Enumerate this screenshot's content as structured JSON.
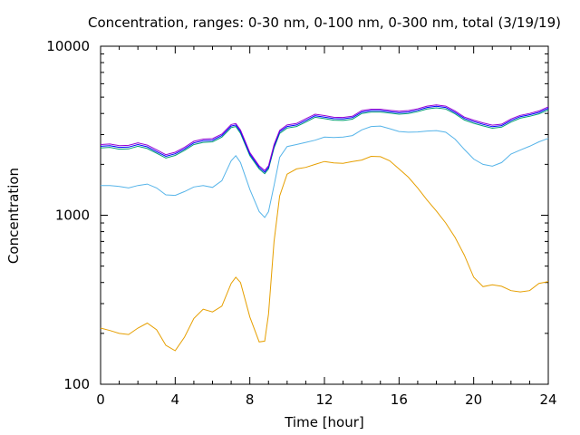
{
  "chart_data": {
    "type": "line",
    "title": "Concentration, ranges: 0-30 nm, 0-100 nm, 0-300 nm, total (3/19/19)",
    "xlabel": "Time [hour]",
    "ylabel": "Concentration",
    "xlim": [
      0,
      24
    ],
    "ylim": [
      100,
      10000
    ],
    "yscale": "log",
    "grid": false,
    "x_ticks": [
      0,
      4,
      8,
      12,
      16,
      20,
      24
    ],
    "x_tick_labels": [
      "0",
      "4",
      "8",
      "12",
      "16",
      "20",
      "24"
    ],
    "y_ticks": [
      100,
      1000,
      10000
    ],
    "y_tick_labels": [
      "100",
      "1000",
      "10000"
    ],
    "series": [
      {
        "color": "#e69f00",
        "x": [
          0,
          0.5,
          1,
          1.5,
          2,
          2.5,
          3,
          3.5,
          4,
          4.5,
          5,
          5.5,
          6,
          6.5,
          7,
          7.25,
          7.5,
          8,
          8.5,
          8.8,
          9,
          9.3,
          9.6,
          10,
          10.5,
          11,
          11.5,
          12,
          12.5,
          13,
          13.5,
          14,
          14.5,
          15,
          15.5,
          16,
          16.5,
          17,
          17.5,
          18,
          18.5,
          19,
          19.5,
          20,
          20.5,
          21,
          21.5,
          22,
          22.5,
          23,
          23.5,
          24
        ],
        "y": [
          215,
          208,
          200,
          197,
          215,
          230,
          210,
          170,
          158,
          190,
          245,
          278,
          268,
          290,
          395,
          430,
          400,
          250,
          178,
          180,
          260,
          700,
          1300,
          1750,
          1880,
          1920,
          2000,
          2080,
          2040,
          2030,
          2080,
          2120,
          2230,
          2220,
          2100,
          1880,
          1680,
          1450,
          1230,
          1060,
          900,
          740,
          580,
          430,
          378,
          388,
          380,
          358,
          352,
          358,
          395,
          405
        ]
      },
      {
        "color": "#56b4e9",
        "x": [
          0,
          0.5,
          1,
          1.5,
          2,
          2.5,
          3,
          3.5,
          4,
          4.5,
          5,
          5.5,
          6,
          6.5,
          7,
          7.25,
          7.5,
          8,
          8.5,
          8.8,
          9,
          9.3,
          9.6,
          10,
          10.5,
          11,
          11.5,
          12,
          12.5,
          13,
          13.5,
          14,
          14.5,
          15,
          15.5,
          16,
          16.5,
          17,
          17.5,
          18,
          18.5,
          19,
          19.5,
          20,
          20.5,
          21,
          21.5,
          22,
          22.5,
          23,
          23.5,
          24
        ],
        "y": [
          1500,
          1500,
          1480,
          1450,
          1500,
          1530,
          1450,
          1320,
          1310,
          1380,
          1470,
          1500,
          1460,
          1600,
          2100,
          2250,
          2050,
          1420,
          1050,
          970,
          1050,
          1500,
          2200,
          2550,
          2620,
          2700,
          2780,
          2900,
          2880,
          2900,
          2960,
          3200,
          3350,
          3370,
          3250,
          3130,
          3100,
          3110,
          3150,
          3170,
          3100,
          2820,
          2450,
          2150,
          2000,
          1950,
          2050,
          2300,
          2430,
          2560,
          2720,
          2850
        ]
      },
      {
        "color": "#009e73",
        "x": [
          0,
          0.5,
          1,
          1.5,
          2,
          2.5,
          3,
          3.5,
          4,
          4.5,
          5,
          5.5,
          6,
          6.5,
          7,
          7.25,
          7.5,
          8,
          8.5,
          8.8,
          9,
          9.3,
          9.6,
          10,
          10.5,
          11,
          11.5,
          12,
          12.5,
          13,
          13.5,
          14,
          14.5,
          15,
          15.5,
          16,
          16.5,
          17,
          17.5,
          18,
          18.5,
          19,
          19.5,
          20,
          20.5,
          21,
          21.5,
          22,
          22.5,
          23,
          23.5,
          24
        ],
        "y": [
          2500,
          2520,
          2460,
          2470,
          2560,
          2480,
          2330,
          2180,
          2260,
          2420,
          2620,
          2700,
          2720,
          2900,
          3300,
          3350,
          3050,
          2250,
          1880,
          1760,
          1880,
          2500,
          3050,
          3280,
          3350,
          3560,
          3800,
          3730,
          3650,
          3640,
          3700,
          4000,
          4080,
          4080,
          4020,
          3960,
          4000,
          4100,
          4250,
          4320,
          4250,
          3980,
          3660,
          3500,
          3380,
          3270,
          3320,
          3560,
          3750,
          3850,
          3980,
          4200
        ]
      },
      {
        "color": "#0000ff",
        "x": [
          0,
          0.5,
          1,
          1.5,
          2,
          2.5,
          3,
          3.5,
          4,
          4.5,
          5,
          5.5,
          6,
          6.5,
          7,
          7.25,
          7.5,
          8,
          8.5,
          8.8,
          9,
          9.3,
          9.6,
          10,
          10.5,
          11,
          11.5,
          12,
          12.5,
          13,
          13.5,
          14,
          14.5,
          15,
          15.5,
          16,
          16.5,
          17,
          17.5,
          18,
          18.5,
          19,
          19.5,
          20,
          20.5,
          21,
          21.5,
          22,
          22.5,
          23,
          23.5,
          24
        ],
        "y": [
          2560,
          2580,
          2520,
          2530,
          2620,
          2540,
          2380,
          2230,
          2310,
          2470,
          2680,
          2760,
          2780,
          2960,
          3370,
          3420,
          3120,
          2300,
          1920,
          1800,
          1920,
          2560,
          3120,
          3350,
          3420,
          3640,
          3880,
          3810,
          3730,
          3720,
          3780,
          4080,
          4160,
          4160,
          4100,
          4040,
          4080,
          4180,
          4340,
          4410,
          4340,
          4060,
          3740,
          3580,
          3450,
          3340,
          3390,
          3640,
          3830,
          3930,
          4060,
          4290
        ]
      },
      {
        "color": "#9400d3",
        "x": [
          0,
          0.5,
          1,
          1.5,
          2,
          2.5,
          3,
          3.5,
          4,
          4.5,
          5,
          5.5,
          6,
          6.5,
          7,
          7.25,
          7.5,
          8,
          8.5,
          8.8,
          9,
          9.3,
          9.6,
          10,
          10.5,
          11,
          11.5,
          12,
          12.5,
          13,
          13.5,
          14,
          14.5,
          15,
          15.5,
          16,
          16.5,
          17,
          17.5,
          18,
          18.5,
          19,
          19.5,
          20,
          20.5,
          21,
          21.5,
          22,
          22.5,
          23,
          23.5,
          24
        ],
        "y": [
          2620,
          2640,
          2580,
          2590,
          2680,
          2600,
          2440,
          2280,
          2360,
          2520,
          2740,
          2820,
          2840,
          3020,
          3440,
          3490,
          3190,
          2350,
          1960,
          1840,
          1960,
          2620,
          3180,
          3420,
          3490,
          3720,
          3960,
          3890,
          3800,
          3790,
          3850,
          4160,
          4240,
          4240,
          4180,
          4120,
          4160,
          4260,
          4420,
          4500,
          4420,
          4140,
          3810,
          3650,
          3520,
          3410,
          3460,
          3710,
          3900,
          4000,
          4140,
          4380
        ]
      }
    ]
  }
}
